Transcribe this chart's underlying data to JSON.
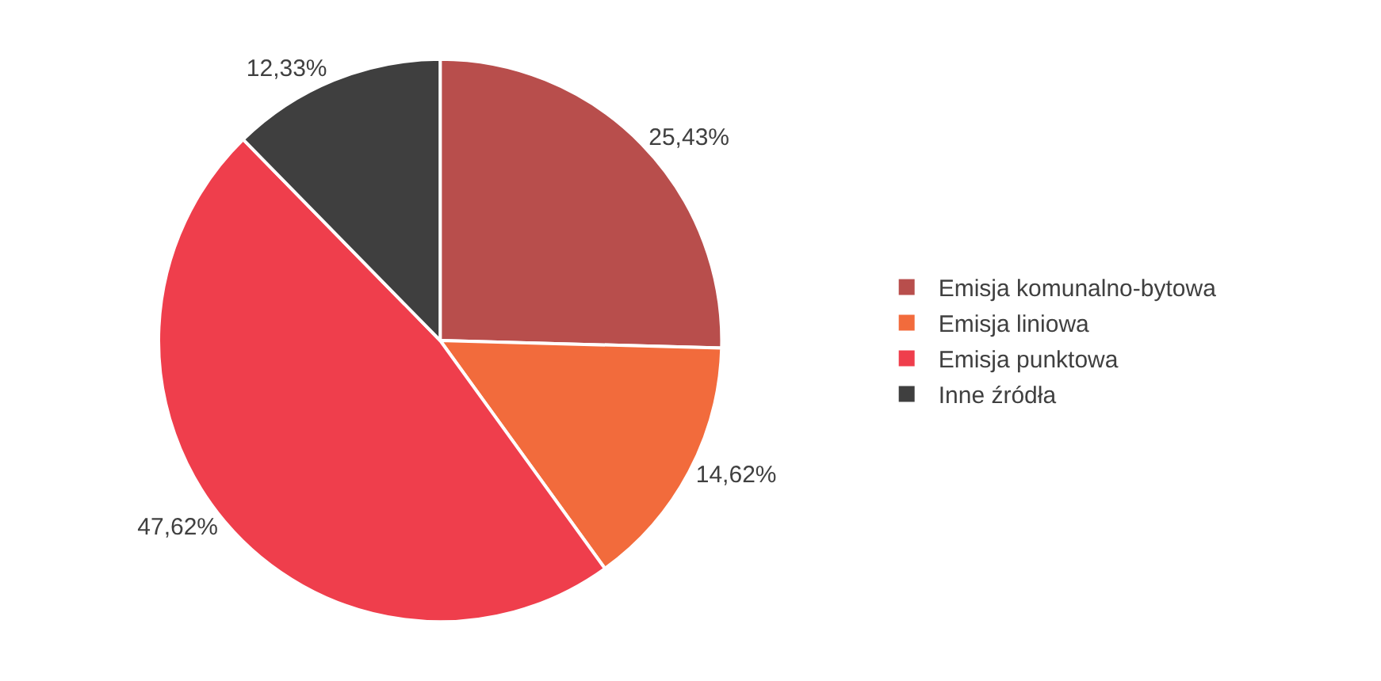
{
  "chart_data": {
    "type": "pie",
    "categories": [
      "Emisja komunalno-bytowa",
      "Emisja liniowa",
      "Emisja punktowa",
      "Inne źródła"
    ],
    "values": [
      25.43,
      14.62,
      47.62,
      12.33
    ],
    "value_labels": [
      "25,43%",
      "14,62%",
      "47,62%",
      "12,33%"
    ],
    "colors": [
      "#b84e4c",
      "#f26b3c",
      "#ef3e4c",
      "#3f3f3f"
    ],
    "legend": "right"
  }
}
